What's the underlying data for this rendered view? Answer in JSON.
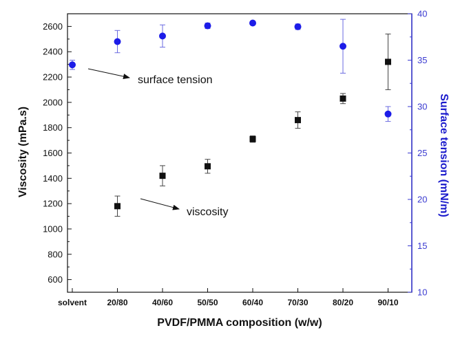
{
  "chart_data": {
    "type": "scatter",
    "title": "",
    "xlabel": "PVDF/PMMA composition (w/w)",
    "ylabel": "Viscosity (mPa.s)",
    "y2label": "Surface tension (mN/m)",
    "categories": [
      "solvent",
      "20/80",
      "40/60",
      "50/50",
      "60/40",
      "70/30",
      "80/20",
      "90/10"
    ],
    "ylim": [
      500,
      2700
    ],
    "y2lim": [
      10,
      40
    ],
    "yticks": [
      600,
      800,
      1000,
      1200,
      1400,
      1600,
      1800,
      2000,
      2200,
      2400,
      2600
    ],
    "y2ticks": [
      10,
      15,
      20,
      25,
      30,
      35,
      40
    ],
    "grid": false,
    "legend": "none",
    "series": [
      {
        "axis": "left",
        "marker": "square",
        "color": "#111111",
        "categories": [
          "20/80",
          "40/60",
          "50/50",
          "60/40",
          "70/30",
          "80/20",
          "90/10"
        ],
        "values": [
          1180,
          1420,
          1495,
          1710,
          1860,
          2030,
          2320
        ],
        "errors": [
          80,
          80,
          55,
          25,
          65,
          40,
          220
        ]
      },
      {
        "axis": "right",
        "marker": "circle",
        "color": "#1c1ce8",
        "categories": [
          "solvent",
          "20/80",
          "40/60",
          "50/50",
          "60/40",
          "70/30",
          "80/20",
          "90/10"
        ],
        "values": [
          34.5,
          37.0,
          37.6,
          38.7,
          39.0,
          38.6,
          36.5,
          29.2
        ],
        "errors": [
          0.5,
          1.2,
          1.2,
          0.3,
          0.2,
          0.3,
          2.9,
          0.8
        ]
      }
    ],
    "annotations": [
      {
        "text": "surface tension",
        "points_to": "solvent"
      },
      {
        "text": "viscosity",
        "points_to": "20/80"
      }
    ]
  }
}
